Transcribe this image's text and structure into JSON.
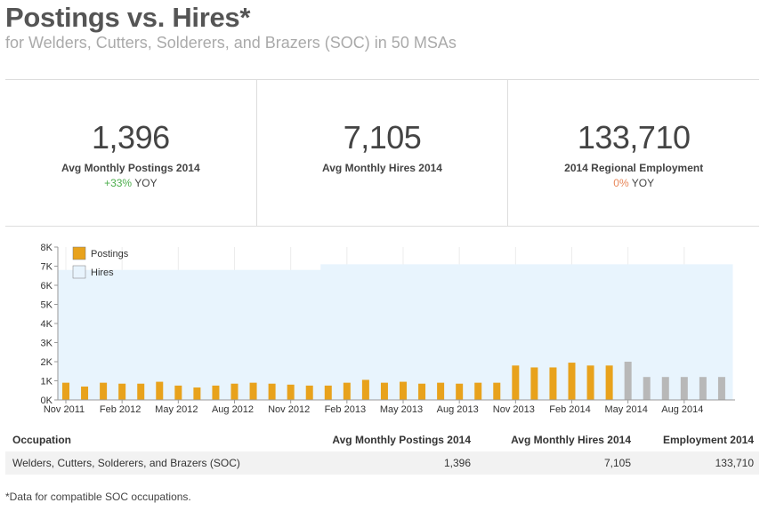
{
  "title": "Postings vs. Hires*",
  "subtitle": "for Welders, Cutters, Solderers, and Brazers (SOC) in 50 MSAs",
  "kpis": [
    {
      "value": "1,396",
      "label": "Avg Monthly Postings 2014",
      "change": "+33%",
      "change_suffix": "YOY"
    },
    {
      "value": "7,105",
      "label": "Avg Monthly Hires 2014",
      "change": "",
      "change_suffix": ""
    },
    {
      "value": "133,710",
      "label": "2014 Regional Employment",
      "change": "0%",
      "change_suffix": "YOY"
    }
  ],
  "colors": {
    "postings": "#e8a21c",
    "projected": "#b8b8b8",
    "hires_fill": "#e8f4fd",
    "hires_border": "#c9def0",
    "positive": "#4cae4c",
    "zero": "#e8875a"
  },
  "chart_data": {
    "type": "bar",
    "legend": [
      "Postings",
      "Hires"
    ],
    "legend_position": "top-left",
    "ylim": [
      0,
      8000
    ],
    "yticks": [
      "0K",
      "1K",
      "2K",
      "3K",
      "4K",
      "5K",
      "6K",
      "7K",
      "8K"
    ],
    "xticks": [
      "Nov 2011",
      "Feb 2012",
      "May 2012",
      "Aug 2012",
      "Nov 2012",
      "Feb 2013",
      "May 2013",
      "Aug 2013",
      "Nov 2013",
      "Feb 2014",
      "May 2014",
      "Aug 2014"
    ],
    "months": [
      "Nov 2011",
      "Dec 2011",
      "Jan 2012",
      "Feb 2012",
      "Mar 2012",
      "Apr 2012",
      "May 2012",
      "Jun 2012",
      "Jul 2012",
      "Aug 2012",
      "Sep 2012",
      "Oct 2012",
      "Nov 2012",
      "Dec 2012",
      "Jan 2013",
      "Feb 2013",
      "Mar 2013",
      "Apr 2013",
      "May 2013",
      "Jun 2013",
      "Jul 2013",
      "Aug 2013",
      "Sep 2013",
      "Oct 2013",
      "Nov 2013",
      "Dec 2013",
      "Jan 2014",
      "Feb 2014",
      "Mar 2014",
      "Apr 2014",
      "May 2014",
      "Jun 2014",
      "Jul 2014",
      "Aug 2014",
      "Sep 2014",
      "Oct 2014"
    ],
    "postings": [
      900,
      700,
      900,
      850,
      850,
      950,
      750,
      650,
      750,
      850,
      900,
      850,
      800,
      750,
      750,
      900,
      1050,
      900,
      950,
      850,
      900,
      850,
      900,
      900,
      1800,
      1700,
      1700,
      1950,
      1800,
      1800,
      2000,
      1200,
      1200,
      1200,
      1200,
      1200
    ],
    "projected_from_index": 30,
    "hires": [
      6800,
      6800,
      6800,
      6800,
      6800,
      6800,
      6800,
      6800,
      6800,
      6800,
      6800,
      6800,
      6800,
      6800,
      7100,
      7100,
      7100,
      7100,
      7100,
      7100,
      7100,
      7100,
      7100,
      7100,
      7100,
      7100,
      7100,
      7100,
      7100,
      7100,
      7100,
      7100,
      7100,
      7100,
      7100,
      7100
    ]
  },
  "table": {
    "headers": [
      "Occupation",
      "Avg Monthly Postings 2014",
      "Avg Monthly Hires 2014",
      "Employment 2014"
    ],
    "rows": [
      [
        "Welders, Cutters, Solderers, and Brazers (SOC)",
        "1,396",
        "7,105",
        "133,710"
      ]
    ]
  },
  "footnote": "*Data for compatible SOC occupations."
}
